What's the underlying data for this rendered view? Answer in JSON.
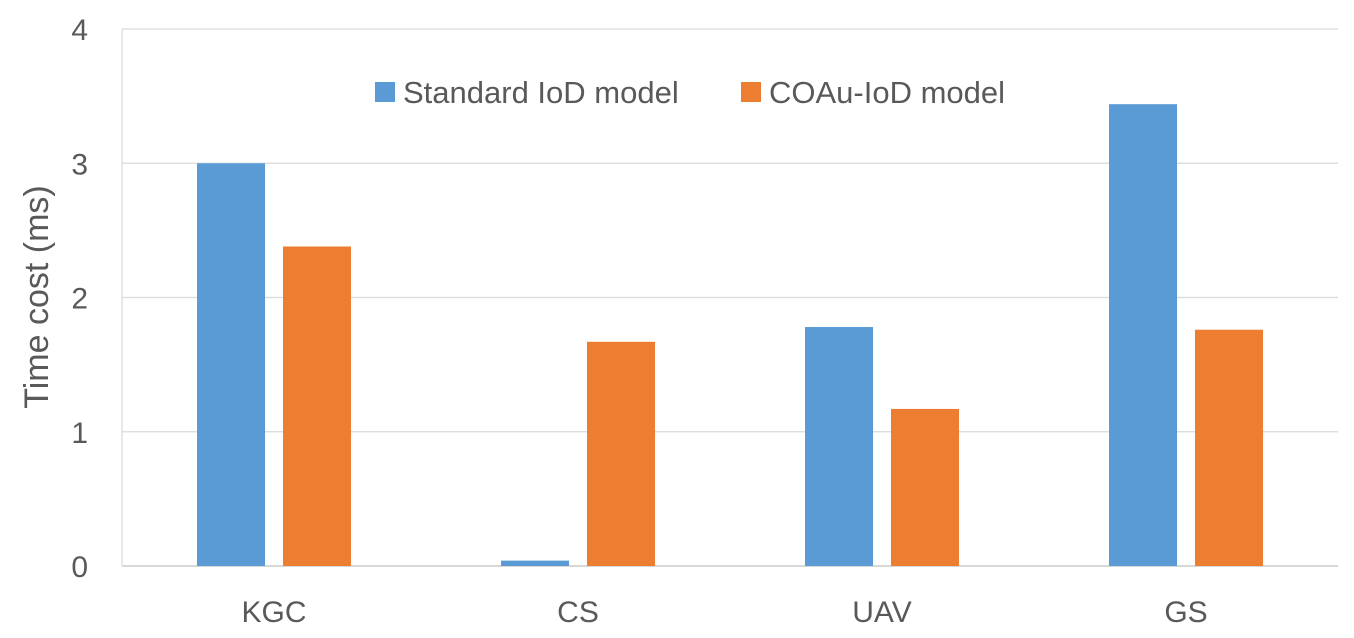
{
  "chart_data": {
    "type": "bar",
    "categories": [
      "KGC",
      "CS",
      "UAV",
      "GS"
    ],
    "series": [
      {
        "name": "Standard IoD model",
        "color": "#5B9BD5",
        "values": [
          3.0,
          0.04,
          1.78,
          3.44
        ]
      },
      {
        "name": "COAu-IoD model",
        "color": "#ED7D31",
        "values": [
          2.38,
          1.67,
          1.17,
          1.76
        ]
      }
    ],
    "ylabel": "Time cost (ms)",
    "xlabel": "",
    "ylim": [
      0,
      4
    ],
    "yticks": [
      "0",
      "1",
      "2",
      "3",
      "4"
    ],
    "grid": true,
    "legend_position": "top-center",
    "gridline_color": "#D9D9D9"
  }
}
